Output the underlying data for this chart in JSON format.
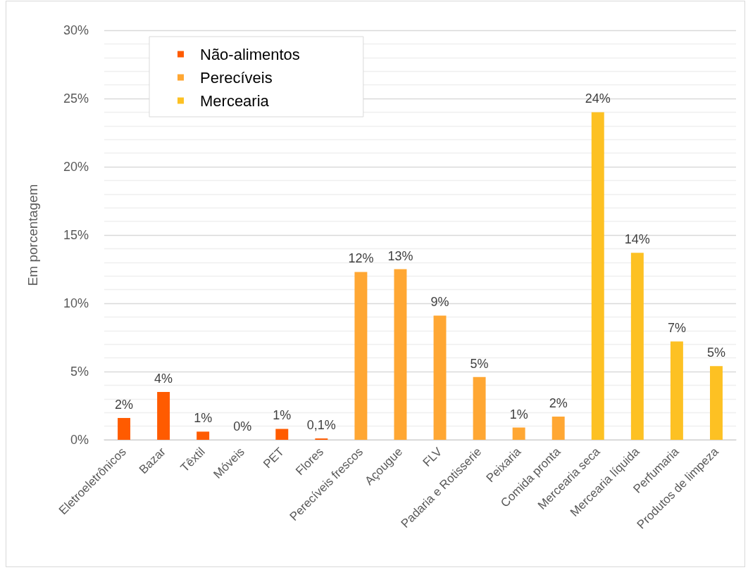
{
  "chart_data": {
    "type": "bar",
    "ylabel": "Em porcentagem",
    "categories": [
      "Eletroeletrônicos",
      "Bazar",
      "Têxtil",
      "Móveis",
      "PET",
      "Flores",
      "Perecíveis frescos",
      "Açougue",
      "FLV",
      "Padaria e Rotisserie",
      "Peixaria",
      "Comida pronta",
      "Mercearia seca",
      "Mercearia líquida",
      "Perfumaria",
      "Produtos de limpeza"
    ],
    "series": [
      {
        "name": "Não-alimentos",
        "color": "#ff5b00",
        "values": [
          1.6,
          3.5,
          0.6,
          0,
          0.8,
          0.1,
          null,
          null,
          null,
          null,
          null,
          null,
          null,
          null,
          null,
          null
        ],
        "value_labels": [
          "2%",
          "4%",
          "1%",
          "0%",
          "1%",
          "0,1%",
          null,
          null,
          null,
          null,
          null,
          null,
          null,
          null,
          null,
          null
        ]
      },
      {
        "name": "Perecíveis",
        "color": "#ffa733",
        "values": [
          null,
          null,
          null,
          null,
          null,
          null,
          12.3,
          12.5,
          9.1,
          4.6,
          0.9,
          1.7,
          null,
          null,
          null,
          null
        ],
        "value_labels": [
          null,
          null,
          null,
          null,
          null,
          null,
          "12%",
          "13%",
          "9%",
          "5%",
          "1%",
          "2%",
          null,
          null,
          null,
          null
        ]
      },
      {
        "name": "Mercearia",
        "color": "#fdc123",
        "values": [
          null,
          null,
          null,
          null,
          null,
          null,
          null,
          null,
          null,
          null,
          null,
          null,
          24.0,
          13.7,
          7.2,
          5.4
        ],
        "value_labels": [
          null,
          null,
          null,
          null,
          null,
          null,
          null,
          null,
          null,
          null,
          null,
          null,
          "24%",
          "14%",
          "7%",
          "5%"
        ]
      }
    ],
    "ylim": [
      0,
      30
    ],
    "yticks": [
      {
        "value": 0,
        "label": "0%"
      },
      {
        "value": 1,
        "label": null
      },
      {
        "value": 2,
        "label": null
      },
      {
        "value": 3,
        "label": null
      },
      {
        "value": 4,
        "label": null
      },
      {
        "value": 5,
        "label": "5%"
      },
      {
        "value": 6,
        "label": null
      },
      {
        "value": 7,
        "label": null
      },
      {
        "value": 8,
        "label": null
      },
      {
        "value": 9,
        "label": null
      },
      {
        "value": 10,
        "label": "10%"
      },
      {
        "value": 11,
        "label": null
      },
      {
        "value": 12,
        "label": null
      },
      {
        "value": 13,
        "label": null
      },
      {
        "value": 14,
        "label": null
      },
      {
        "value": 15,
        "label": "15%"
      },
      {
        "value": 16,
        "label": null
      },
      {
        "value": 17,
        "label": null
      },
      {
        "value": 18,
        "label": null
      },
      {
        "value": 19,
        "label": null
      },
      {
        "value": 20,
        "label": "20%"
      },
      {
        "value": 21,
        "label": null
      },
      {
        "value": 22,
        "label": null
      },
      {
        "value": 23,
        "label": null
      },
      {
        "value": 24,
        "label": null
      },
      {
        "value": 25,
        "label": "25%"
      },
      {
        "value": 26,
        "label": null
      },
      {
        "value": 27,
        "label": null
      },
      {
        "value": 28,
        "label": null
      },
      {
        "value": 29,
        "label": null
      },
      {
        "value": 30,
        "label": "30%"
      }
    ],
    "grid": "y",
    "legend": "top left"
  }
}
